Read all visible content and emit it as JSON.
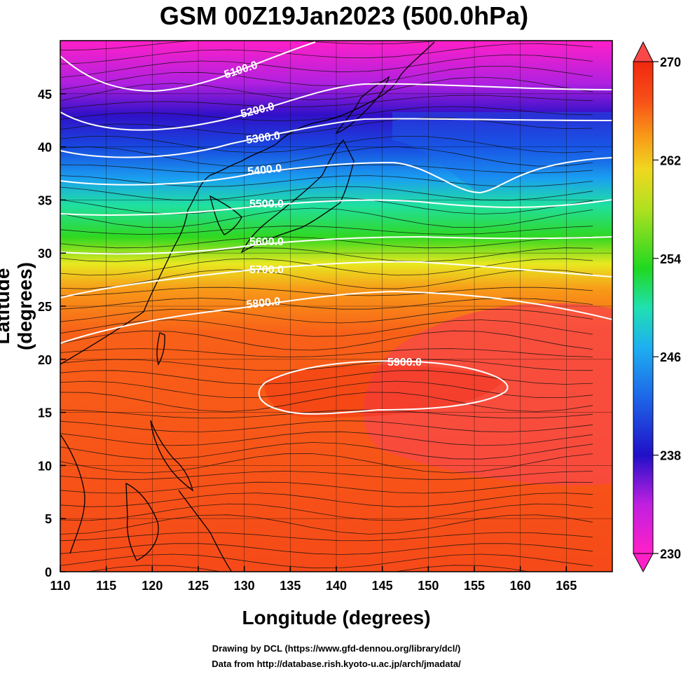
{
  "title": "GSM 00Z19Jan2023 (500.0hPa)",
  "x_axis": {
    "label": "Longitude (degrees)",
    "ticks": [
      110,
      115,
      120,
      125,
      130,
      135,
      140,
      145,
      150,
      155,
      160,
      165
    ],
    "range": [
      110,
      170
    ]
  },
  "y_axis": {
    "label": "Latitude  (degrees)",
    "ticks": [
      0,
      5,
      10,
      15,
      20,
      25,
      30,
      35,
      40,
      45
    ],
    "range": [
      0,
      50
    ]
  },
  "colorbar": {
    "min": 230,
    "max": 270,
    "ticks": [
      230,
      238,
      246,
      254,
      262,
      270
    ],
    "colors": [
      "#ff20c8",
      "#c020e0",
      "#5a10d8",
      "#1010c0",
      "#1858e8",
      "#1ea0f0",
      "#20d8e8",
      "#20e0a0",
      "#20d820",
      "#80e020",
      "#e8e820",
      "#f8a818",
      "#f86018",
      "#f02810",
      "#f84848"
    ]
  },
  "contours": [
    {
      "label": "5100.0",
      "color": "#ffffff"
    },
    {
      "label": "5200.0",
      "color": "#ffffff"
    },
    {
      "label": "5300.0",
      "color": "#ffffff"
    },
    {
      "label": "5400.0",
      "color": "#ffffff"
    },
    {
      "label": "5500.0",
      "color": "#ffffff"
    },
    {
      "label": "5600.0",
      "color": "#ffffff"
    },
    {
      "label": "5700.0",
      "color": "#ffffff"
    },
    {
      "label": "5800.0",
      "color": "#ffffff"
    },
    {
      "label": "5900.0",
      "color": "#ffffff"
    }
  ],
  "credits": [
    "Drawing by DCL (https://www.gfd-dennou.org/library/dcl/)",
    "Data from http://database.rish.kyoto-u.ac.jp/arch/jmadata/"
  ]
}
